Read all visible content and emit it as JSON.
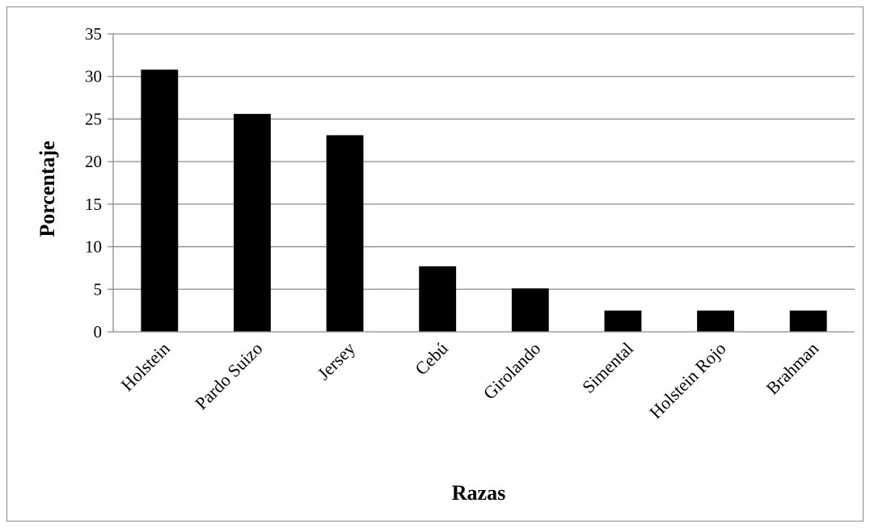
{
  "chart_data": {
    "type": "bar",
    "title": "",
    "xlabel": "Razas",
    "ylabel": "Porcentaje",
    "categories": [
      "Holstein",
      "Pardo Suizo",
      "Jersey",
      "Cebú",
      "Girolando",
      "Simental",
      "Holstein Rojo",
      "Brahman"
    ],
    "values": [
      30.8,
      25.6,
      23.1,
      7.7,
      5.1,
      2.5,
      2.5,
      2.5
    ],
    "ylim": [
      0,
      35
    ],
    "yticks": [
      0,
      5,
      10,
      15,
      20,
      25,
      30,
      35
    ],
    "grid": true,
    "legend": "none",
    "bar_color": "#000000",
    "grid_color": "#8c8c8c"
  }
}
